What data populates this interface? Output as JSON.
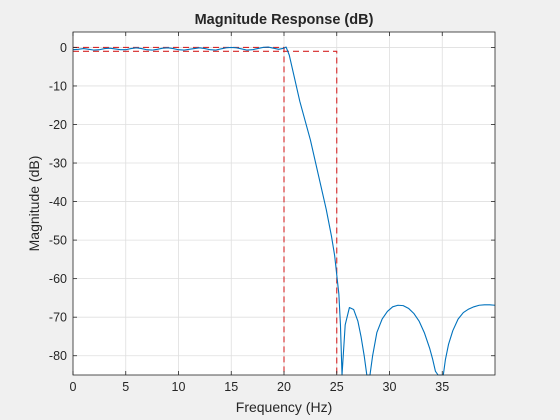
{
  "chart_data": {
    "type": "line",
    "title": "Magnitude Response (dB)",
    "xlabel": "Frequency (Hz)",
    "ylabel": "Magnitude (dB)",
    "xlim": [
      0,
      40
    ],
    "ylim": [
      -85,
      4
    ],
    "grid": true,
    "xticks": [
      0,
      5,
      10,
      15,
      20,
      25,
      30,
      35
    ],
    "yticks": [
      0,
      -10,
      -20,
      -30,
      -40,
      -50,
      -60,
      -70,
      -80
    ],
    "colors": {
      "response": "#0072bd",
      "spec": "#d62728",
      "grid": "#dfdfdf",
      "plot_bg": "#ffffff",
      "figure_bg": "#f0f0f0"
    },
    "series": [
      {
        "kind": "response",
        "x": [
          0,
          0.5,
          1,
          1.5,
          2,
          2.5,
          3,
          3.5,
          4,
          4.5,
          5,
          5.5,
          6,
          6.5,
          7,
          7.5,
          8,
          8.5,
          9,
          9.5,
          10,
          10.5,
          11,
          11.5,
          12,
          12.5,
          13,
          13.5,
          14,
          14.5,
          15,
          15.5,
          16,
          16.5,
          17,
          17.5,
          18,
          18.5,
          19,
          19.5,
          20,
          20.2,
          20.5,
          21,
          21.5,
          22,
          22.5,
          23,
          23.5,
          24,
          24.5,
          24.8,
          25,
          25.2,
          25.35,
          25.5,
          25.8,
          26.2,
          26.6,
          27,
          27.3,
          27.6,
          27.85,
          28,
          28.15,
          28.4,
          28.8,
          29.3,
          29.8,
          30.3,
          30.8,
          31.3,
          31.8,
          32.3,
          32.8,
          33.3,
          33.8,
          34.1,
          34.35,
          34.6,
          34.8,
          34.95,
          35.1,
          35.3,
          35.6,
          36,
          36.5,
          37,
          37.5,
          38,
          38.5,
          39,
          39.5,
          40
        ],
        "y": [
          -0.6,
          -0.5,
          -0.3,
          -0.5,
          -0.7,
          -0.6,
          -0.3,
          -0.2,
          -0.4,
          -0.6,
          -0.6,
          -0.3,
          -0.1,
          -0.3,
          -0.6,
          -0.7,
          -0.5,
          -0.2,
          -0.1,
          -0.3,
          -0.6,
          -0.7,
          -0.5,
          -0.3,
          -0.1,
          -0.3,
          -0.6,
          -0.7,
          -0.4,
          -0.1,
          0,
          -0.1,
          -0.4,
          -0.7,
          -0.6,
          -0.3,
          0,
          0.1,
          -0.2,
          -0.5,
          -0.2,
          0.1,
          -2,
          -8,
          -14,
          -19,
          -24,
          -30,
          -36,
          -42,
          -49,
          -54,
          -59,
          -64,
          -72,
          -85,
          -72,
          -67.5,
          -68,
          -71,
          -75,
          -80,
          -85,
          -85,
          -85,
          -80,
          -74,
          -70.5,
          -68.5,
          -67.3,
          -66.9,
          -67,
          -67.7,
          -69,
          -71,
          -74,
          -78,
          -81,
          -84,
          -85,
          -85,
          -85,
          -85,
          -81,
          -77,
          -73.5,
          -70.5,
          -68.8,
          -67.9,
          -67.3,
          -66.9,
          -66.8,
          -66.8,
          -66.9
        ]
      },
      {
        "kind": "spec",
        "segments": [
          [
            [
              0,
              0
            ],
            [
              20,
              0
            ],
            [
              20,
              -85
            ]
          ],
          [
            [
              0,
              -1
            ],
            [
              25,
              -1
            ],
            [
              25,
              -85
            ]
          ]
        ]
      }
    ]
  }
}
